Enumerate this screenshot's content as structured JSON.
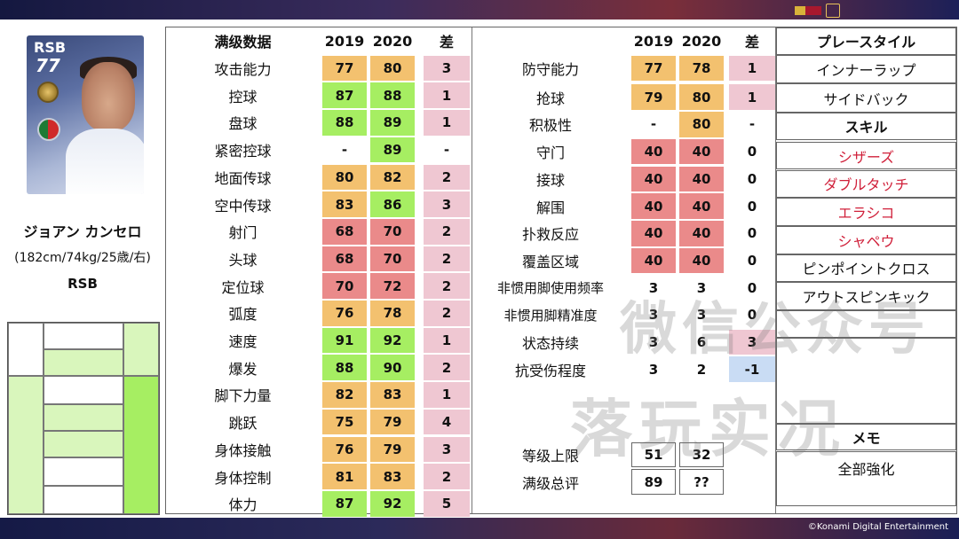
{
  "player": {
    "card_position": "RSB",
    "card_rating": "77",
    "name": "ジョアン カンセロ",
    "info": "(182cm/74kg/25歳/右)",
    "position": "RSB"
  },
  "left_table": {
    "header": [
      "满级数据",
      "2019",
      "2020",
      "差"
    ],
    "rows": [
      {
        "label": "攻击能力",
        "y2019": "77",
        "y2020": "80",
        "diff": "3",
        "c2019": "o",
        "c2020": "o",
        "cdiff": "p"
      },
      {
        "label": "控球",
        "y2019": "87",
        "y2020": "88",
        "diff": "1",
        "c2019": "g",
        "c2020": "g",
        "cdiff": "p"
      },
      {
        "label": "盘球",
        "y2019": "88",
        "y2020": "89",
        "diff": "1",
        "c2019": "g",
        "c2020": "g",
        "cdiff": "p"
      },
      {
        "label": "紧密控球",
        "y2019": "-",
        "y2020": "89",
        "diff": "-",
        "c2019": "",
        "c2020": "g",
        "cdiff": ""
      },
      {
        "label": "地面传球",
        "y2019": "80",
        "y2020": "82",
        "diff": "2",
        "c2019": "o",
        "c2020": "o",
        "cdiff": "p"
      },
      {
        "label": "空中传球",
        "y2019": "83",
        "y2020": "86",
        "diff": "3",
        "c2019": "o",
        "c2020": "g",
        "cdiff": "p"
      },
      {
        "label": "射门",
        "y2019": "68",
        "y2020": "70",
        "diff": "2",
        "c2019": "r",
        "c2020": "r",
        "cdiff": "p"
      },
      {
        "label": "头球",
        "y2019": "68",
        "y2020": "70",
        "diff": "2",
        "c2019": "r",
        "c2020": "r",
        "cdiff": "p"
      },
      {
        "label": "定位球",
        "y2019": "70",
        "y2020": "72",
        "diff": "2",
        "c2019": "r",
        "c2020": "r",
        "cdiff": "p"
      },
      {
        "label": "弧度",
        "y2019": "76",
        "y2020": "78",
        "diff": "2",
        "c2019": "o",
        "c2020": "o",
        "cdiff": "p"
      },
      {
        "label": "速度",
        "y2019": "91",
        "y2020": "92",
        "diff": "1",
        "c2019": "g",
        "c2020": "g",
        "cdiff": "p"
      },
      {
        "label": "爆发",
        "y2019": "88",
        "y2020": "90",
        "diff": "2",
        "c2019": "g",
        "c2020": "g",
        "cdiff": "p"
      },
      {
        "label": "脚下力量",
        "y2019": "82",
        "y2020": "83",
        "diff": "1",
        "c2019": "o",
        "c2020": "o",
        "cdiff": "p"
      },
      {
        "label": "跳跃",
        "y2019": "75",
        "y2020": "79",
        "diff": "4",
        "c2019": "o",
        "c2020": "o",
        "cdiff": "p"
      },
      {
        "label": "身体接触",
        "y2019": "76",
        "y2020": "79",
        "diff": "3",
        "c2019": "o",
        "c2020": "o",
        "cdiff": "p"
      },
      {
        "label": "身体控制",
        "y2019": "81",
        "y2020": "83",
        "diff": "2",
        "c2019": "o",
        "c2020": "o",
        "cdiff": "p"
      },
      {
        "label": "体力",
        "y2019": "87",
        "y2020": "92",
        "diff": "5",
        "c2019": "g",
        "c2020": "g",
        "cdiff": "p"
      }
    ]
  },
  "right_table": {
    "header": [
      "2019",
      "2020",
      "差"
    ],
    "rows": [
      {
        "label": "防守能力",
        "y2019": "77",
        "y2020": "78",
        "diff": "1",
        "c2019": "o",
        "c2020": "o",
        "cdiff": "p"
      },
      {
        "label": "抢球",
        "y2019": "79",
        "y2020": "80",
        "diff": "1",
        "c2019": "o",
        "c2020": "o",
        "cdiff": "p"
      },
      {
        "label": "积极性",
        "y2019": "-",
        "y2020": "80",
        "diff": "-",
        "c2019": "",
        "c2020": "o",
        "cdiff": ""
      },
      {
        "label": "守门",
        "y2019": "40",
        "y2020": "40",
        "diff": "0",
        "c2019": "r",
        "c2020": "r",
        "cdiff": ""
      },
      {
        "label": "接球",
        "y2019": "40",
        "y2020": "40",
        "diff": "0",
        "c2019": "r",
        "c2020": "r",
        "cdiff": ""
      },
      {
        "label": "解围",
        "y2019": "40",
        "y2020": "40",
        "diff": "0",
        "c2019": "r",
        "c2020": "r",
        "cdiff": ""
      },
      {
        "label": "扑救反应",
        "y2019": "40",
        "y2020": "40",
        "diff": "0",
        "c2019": "r",
        "c2020": "r",
        "cdiff": ""
      },
      {
        "label": "覆盖区域",
        "y2019": "40",
        "y2020": "40",
        "diff": "0",
        "c2019": "r",
        "c2020": "r",
        "cdiff": ""
      },
      {
        "label": "非惯用脚使用频率",
        "y2019": "3",
        "y2020": "3",
        "diff": "0",
        "c2019": "",
        "c2020": "",
        "cdiff": ""
      },
      {
        "label": "非惯用脚精准度",
        "y2019": "3",
        "y2020": "3",
        "diff": "0",
        "c2019": "",
        "c2020": "",
        "cdiff": ""
      },
      {
        "label": "状态持续",
        "y2019": "3",
        "y2020": "6",
        "diff": "3",
        "c2019": "",
        "c2020": "",
        "cdiff": "p"
      },
      {
        "label": "抗受伤程度",
        "y2019": "3",
        "y2020": "2",
        "diff": "-1",
        "c2019": "",
        "c2020": "",
        "cdiff": "b"
      }
    ],
    "limit": {
      "label": "等级上限",
      "y2019": "51",
      "y2020": "32"
    },
    "overall": {
      "label": "满级总评",
      "y2019": "89",
      "y2020": "??"
    }
  },
  "style_column": {
    "header": "プレースタイル",
    "playstyles": [
      "インナーラップ",
      "サイドバック"
    ],
    "skills_header": "スキル",
    "skills": [
      {
        "text": "シザーズ",
        "red": true
      },
      {
        "text": "ダブルタッチ",
        "red": true
      },
      {
        "text": "エラシコ",
        "red": true
      },
      {
        "text": "シャペウ",
        "red": true
      },
      {
        "text": "ピンポイントクロス",
        "red": false
      },
      {
        "text": "アウトスピンキック",
        "red": false
      }
    ],
    "memo_header": "メモ",
    "memo": "全部強化"
  },
  "watermark": {
    "line1": "微信公众号",
    "line2": "落玩实况"
  },
  "copyright": "©Konami Digital Entertainment",
  "colors": {
    "orange": "#f3c16f",
    "green": "#a6ee62",
    "red": "#ea8a8a",
    "pink": "#efc7d2",
    "blue": "#c9dcf4",
    "skill_red": "#d0203a"
  }
}
